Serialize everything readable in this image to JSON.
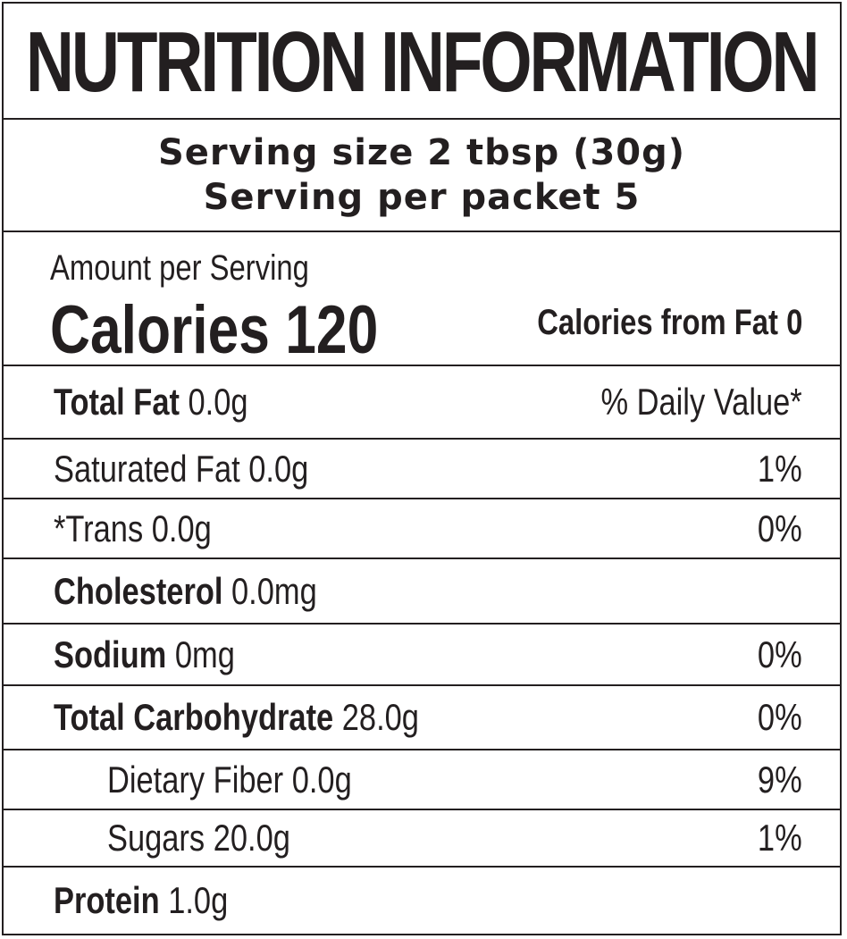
{
  "title": "NUTRITION INFORMATION",
  "serving": {
    "size_line": "Serving size 2 tbsp (30g)",
    "per_packet_line": "Serving per packet 5"
  },
  "calories": {
    "amount_label": "Amount per Serving",
    "calories_text": "Calories 120",
    "calories_from_fat": "Calories from Fat 0"
  },
  "rows": [
    {
      "name": "Total Fat",
      "amount": " 0.0g",
      "dv": "% Daily Value*"
    },
    {
      "name": "Saturated Fat 0.0g",
      "amount": "",
      "dv": "1%"
    },
    {
      "name": "*Trans 0.0g",
      "amount": "",
      "dv": "0%"
    },
    {
      "name": "Cholesterol",
      "amount": " 0.0mg",
      "dv": ""
    },
    {
      "name": "Sodium",
      "amount": " 0mg",
      "dv": "0%"
    },
    {
      "name": "Total Carbohydrate",
      "amount": " 28.0g",
      "dv": "0%"
    },
    {
      "name": "Dietary Fiber 0.0g",
      "amount": "",
      "dv": "9%"
    },
    {
      "name": "Sugars 20.0g",
      "amount": "",
      "dv": "1%"
    },
    {
      "name": "Protein",
      "amount": " 1.0g",
      "dv": ""
    }
  ]
}
